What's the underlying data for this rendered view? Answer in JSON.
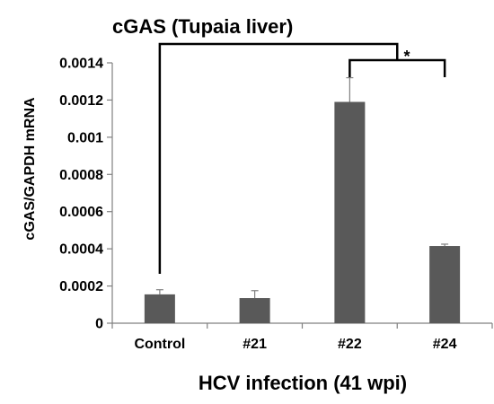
{
  "chart_data": {
    "type": "bar",
    "title": "cGAS (Tupaia liver)",
    "xlabel": "HCV infection (41 wpi)",
    "ylabel": "cGAS/GAPDH mRNA",
    "categories": [
      "Control",
      "#21",
      "#22",
      "#24"
    ],
    "values": [
      0.000155,
      0.000135,
      0.00119,
      0.000415
    ],
    "errors": [
      2.5e-05,
      4e-05,
      0.00013,
      1e-05
    ],
    "ylim": [
      0,
      0.0014
    ],
    "yticks": [
      "0",
      "0.0002",
      "0.0004",
      "0.0006",
      "0.0008",
      "0.001",
      "0.0012",
      "0.0014"
    ],
    "grid": false,
    "legend": "none",
    "bar_color": "#595959",
    "significance": {
      "groups": [
        [
          "Control"
        ],
        [
          "#22",
          "#24"
        ]
      ],
      "label": "*"
    }
  }
}
